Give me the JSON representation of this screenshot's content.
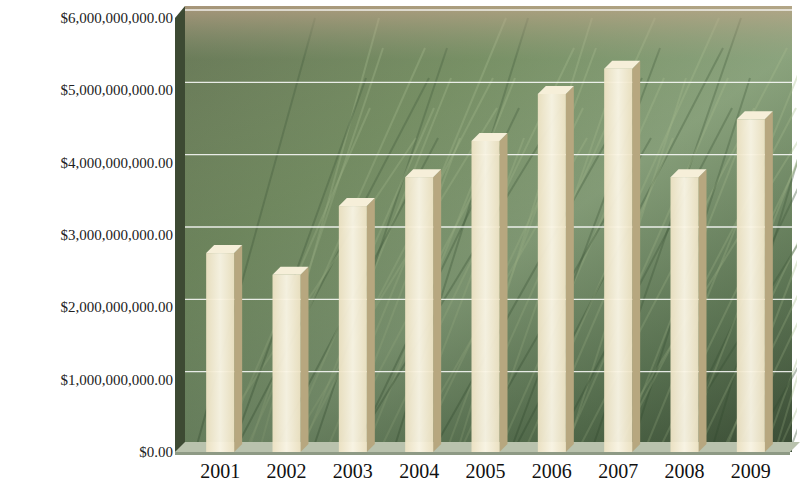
{
  "chart_data": {
    "type": "bar",
    "categories": [
      "2001",
      "2002",
      "2003",
      "2004",
      "2005",
      "2006",
      "2007",
      "2008",
      "2009"
    ],
    "values": [
      2750000000,
      2450000000,
      3400000000,
      3800000000,
      4300000000,
      4950000000,
      5300000000,
      3800000000,
      4600000000
    ],
    "color": "#eee3c4",
    "ylim": [
      0,
      6000000000
    ],
    "yticks": [
      {
        "value": 0,
        "label": "$0.00"
      },
      {
        "value": 1000000000,
        "label": "$1,000,000,000.00"
      },
      {
        "value": 2000000000,
        "label": "$2,000,000,000.00"
      },
      {
        "value": 3000000000,
        "label": "$3,000,000,000.00"
      },
      {
        "value": 4000000000,
        "label": "$4,000,000,000.00"
      },
      {
        "value": 5000000000,
        "label": "$5,000,000,000.00"
      },
      {
        "value": 6000000000,
        "label": "$6,000,000,000.00"
      }
    ],
    "grid": true
  }
}
